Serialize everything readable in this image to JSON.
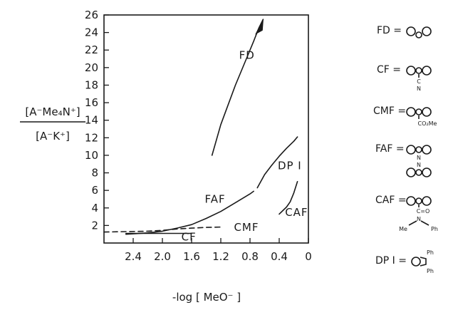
{
  "chart_data": {
    "type": "line",
    "xlabel": "-log [ MeO⁻ ]",
    "ylabel_numerator": "[A⁻Me₄N⁺]",
    "ylabel_denominator": "[A⁻K⁺]",
    "xlim": [
      2.8,
      0
    ],
    "ylim": [
      0,
      26
    ],
    "x_ticks": [
      "2.4",
      "2.0",
      "1.6",
      "1.2",
      "0.8",
      "0.4",
      "0"
    ],
    "y_ticks": [
      "2",
      "4",
      "6",
      "8",
      "10",
      "12",
      "14",
      "16",
      "18",
      "20",
      "22",
      "24",
      "26"
    ],
    "grid": false,
    "series": [
      {
        "name": "FD",
        "style": "solid",
        "x": [
          1.32,
          1.2,
          1.0,
          0.85,
          0.75,
          0.68,
          0.62
        ],
        "y": [
          10,
          13.5,
          18,
          21,
          23,
          24.5,
          25.5
        ]
      },
      {
        "name": "FAF",
        "style": "solid",
        "x": [
          2.5,
          2.2,
          2.0,
          1.8,
          1.6,
          1.4,
          1.2,
          1.0,
          0.8,
          0.75
        ],
        "y": [
          1.0,
          1.15,
          1.35,
          1.7,
          2.1,
          2.8,
          3.6,
          4.6,
          5.6,
          5.9
        ]
      },
      {
        "name": "DP I",
        "style": "solid",
        "x": [
          0.7,
          0.6,
          0.5,
          0.4,
          0.3,
          0.2,
          0.15
        ],
        "y": [
          6.3,
          7.8,
          8.9,
          9.9,
          10.8,
          11.6,
          12.1
        ]
      },
      {
        "name": "CAF",
        "style": "solid",
        "x": [
          0.4,
          0.35,
          0.3,
          0.25,
          0.2,
          0.15
        ],
        "y": [
          3.3,
          3.7,
          4.1,
          4.7,
          5.7,
          7.0
        ]
      },
      {
        "name": "CMF",
        "style": "dashed",
        "x": [
          2.8,
          2.5,
          2.2,
          2.0,
          1.8,
          1.6,
          1.4,
          1.2
        ],
        "y": [
          1.25,
          1.3,
          1.35,
          1.45,
          1.6,
          1.7,
          1.78,
          1.82
        ]
      },
      {
        "name": "CF",
        "style": "solid",
        "x": [
          2.5,
          2.2,
          2.0,
          1.8,
          1.6
        ],
        "y": [
          1.1,
          1.1,
          1.1,
          1.1,
          1.1
        ]
      }
    ],
    "annotations": [
      "FD",
      "FAF",
      "DP I",
      "CAF",
      "CMF",
      "CF"
    ]
  },
  "key": {
    "items": [
      {
        "label": "FD ="
      },
      {
        "label": "CF ="
      },
      {
        "label": "CMF ="
      },
      {
        "label": "FAF ="
      },
      {
        "label": "CAF ="
      },
      {
        "label": "DP I ="
      }
    ],
    "subs": {
      "cf_c": "C",
      "cf_n": "N",
      "cmf": "CO₂Me",
      "faf_n1": "N",
      "faf_n2": "N",
      "caf_c": "C=O",
      "caf_n": "N",
      "caf_me": "Me",
      "caf_ph": "Ph",
      "dpi_ph1": "Ph",
      "dpi_ph2": "Ph"
    }
  },
  "colors": {
    "ink": "#1a1a1a",
    "background": "#ffffff"
  }
}
